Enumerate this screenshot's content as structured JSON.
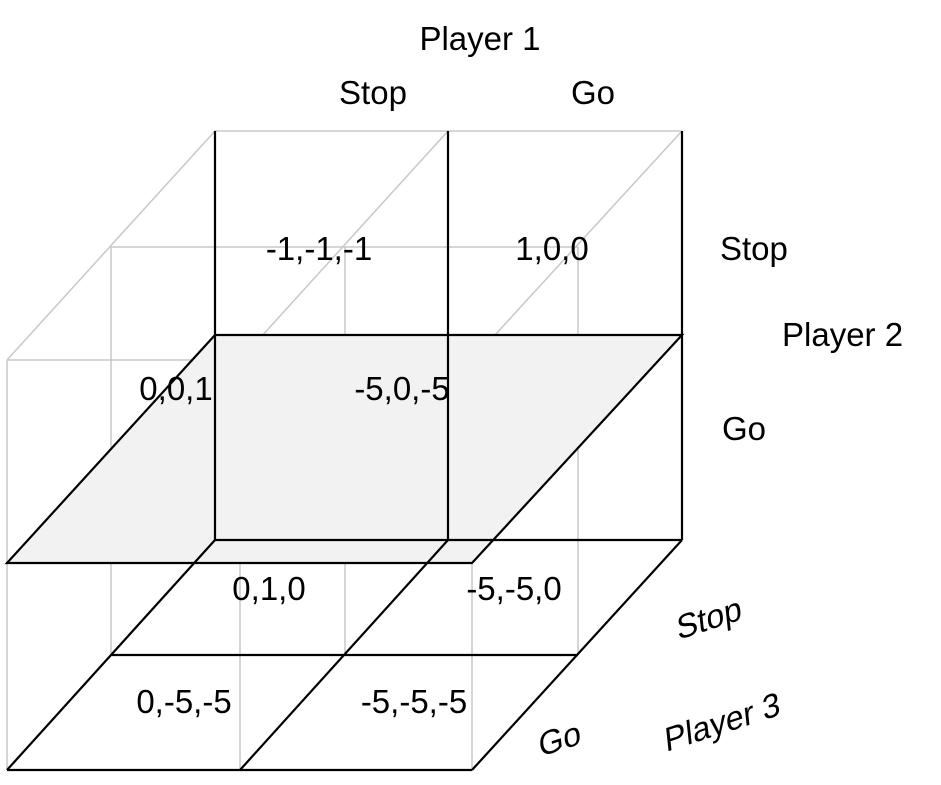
{
  "players": {
    "player1": {
      "name": "Player 1",
      "strategies": [
        "Stop",
        "Go"
      ]
    },
    "player2": {
      "name": "Player 2",
      "strategies": [
        "Stop",
        "Go"
      ]
    },
    "player3": {
      "name": "Player 3",
      "strategies": [
        "Stop",
        "Go"
      ]
    }
  },
  "payoffs": {
    "p3_stop": {
      "p2_stop": {
        "p1_stop": "-1,-1,-1",
        "p1_go": "1,0,0"
      },
      "p2_go": {
        "p1_stop": "0,1,0",
        "p1_go": "-5,-5,0"
      }
    },
    "p3_go": {
      "p2_stop": {
        "p1_stop": "0,0,1",
        "p1_go": "-5,0,-5"
      },
      "p2_go": {
        "p1_stop": "0,-5,-5",
        "p1_go": "-5,-5,-5"
      }
    }
  },
  "colors": {
    "front_edges": "#000000",
    "hidden_edges": "#c8c8c8",
    "shaded_plane": "#f2f2f2"
  }
}
